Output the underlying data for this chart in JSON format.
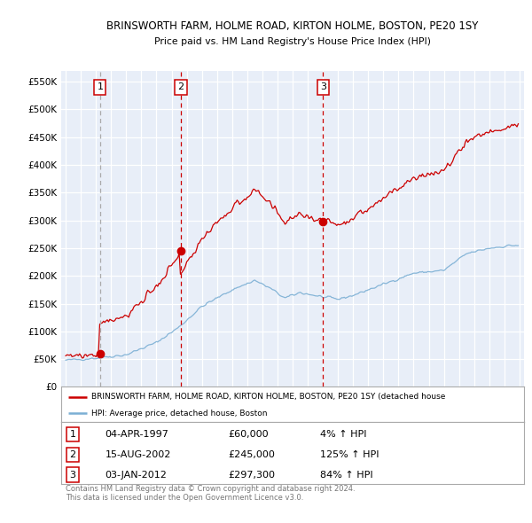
{
  "title": "BRINSWORTH FARM, HOLME ROAD, KIRTON HOLME, BOSTON, PE20 1SY",
  "subtitle": "Price paid vs. HM Land Registry's House Price Index (HPI)",
  "bg_color": "#e8eef8",
  "red_color": "#cc0000",
  "blue_color": "#7bafd4",
  "ylim": [
    0,
    570000
  ],
  "yticks": [
    0,
    50000,
    100000,
    150000,
    200000,
    250000,
    300000,
    350000,
    400000,
    450000,
    500000,
    550000
  ],
  "xlim_min": 1994.7,
  "xlim_max": 2025.3,
  "sales": [
    {
      "label": "1",
      "date": "04-APR-1997",
      "price": 60000,
      "pct": "4%",
      "year": 1997.27
    },
    {
      "label": "2",
      "date": "15-AUG-2002",
      "price": 245000,
      "pct": "125%",
      "year": 2002.62
    },
    {
      "label": "3",
      "date": "03-JAN-2012",
      "price": 297300,
      "pct": "84%",
      "year": 2012.01
    }
  ],
  "legend_line1": "BRINSWORTH FARM, HOLME ROAD, KIRTON HOLME, BOSTON, PE20 1SY (detached house",
  "legend_line2": "HPI: Average price, detached house, Boston",
  "footer": "Contains HM Land Registry data © Crown copyright and database right 2024.\nThis data is licensed under the Open Government Licence v3.0."
}
